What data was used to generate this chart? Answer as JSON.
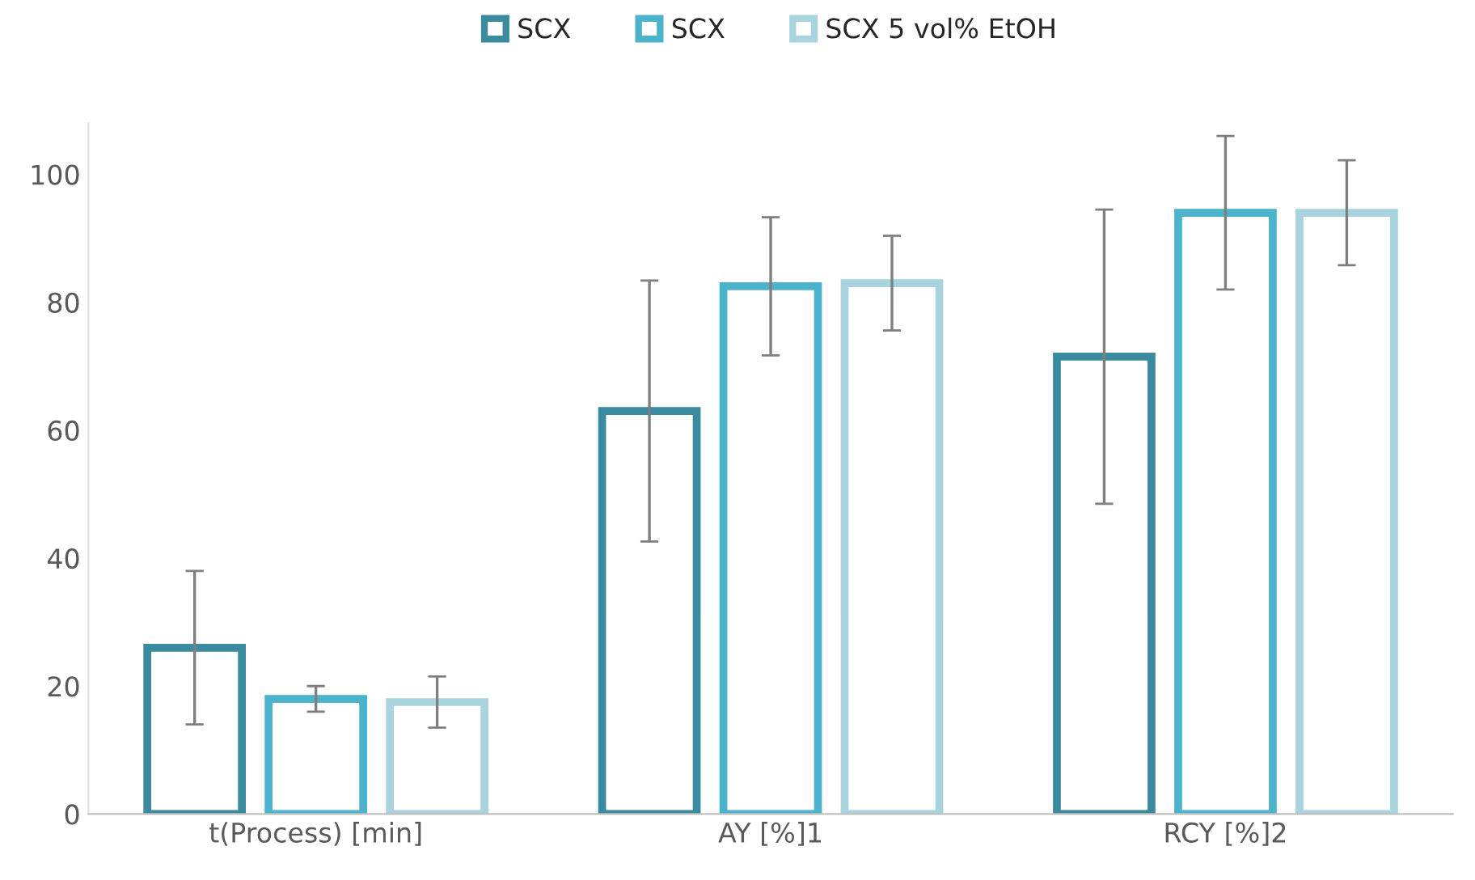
{
  "chart_data": {
    "type": "bar",
    "categories": [
      "t(Process) [min]",
      "AY [%]1",
      "RCY [%]2"
    ],
    "series": [
      {
        "name": "SCX",
        "color": "#3a8aa0",
        "values": [
          26,
          63,
          71.5
        ],
        "errors": [
          12,
          20.4,
          23
        ]
      },
      {
        "name": "SCX",
        "color": "#4bb3cc",
        "values": [
          18,
          82.5,
          94
        ],
        "errors": [
          2,
          10.8,
          12
        ]
      },
      {
        "name": "SCX 5 vol% EtOH",
        "color": "#a8d4e0",
        "values": [
          17.5,
          83,
          94
        ],
        "errors": [
          4,
          7.4,
          8.2
        ]
      }
    ],
    "ylim": [
      0,
      108
    ],
    "yticks": [
      0,
      20,
      40,
      60,
      80,
      100
    ],
    "grid": false,
    "legend": "top"
  }
}
